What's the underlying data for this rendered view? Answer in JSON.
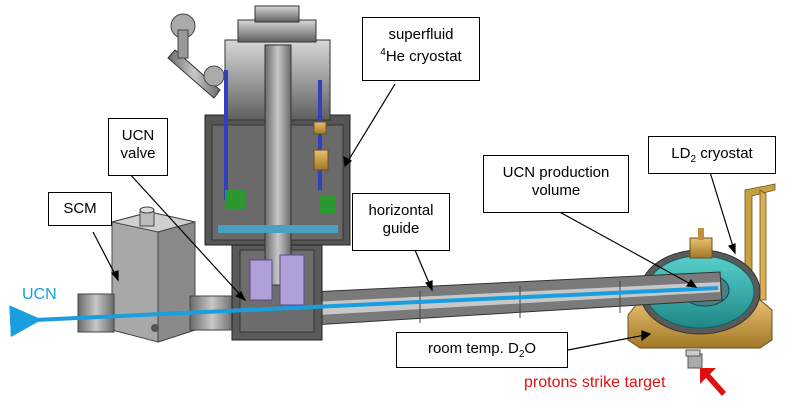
{
  "labels": {
    "superfluid_line1": "superfluid",
    "superfluid_line2_sup": "4",
    "superfluid_line2_rest": "He cryostat",
    "ucn_valve_line1": "UCN",
    "ucn_valve_line2": "valve",
    "scm": "SCM",
    "horizontal_line1": "horizontal",
    "horizontal_line2": "guide",
    "ucn_prod_line1": "UCN production",
    "ucn_prod_line2": "volume",
    "ld2_main": "LD",
    "ld2_sub": "2",
    "ld2_rest": " cryostat",
    "d2o_main": "room temp. D",
    "d2o_sub": "2",
    "d2o_rest": "O",
    "ucn": "UCN",
    "protons": "protons strike target"
  },
  "colors": {
    "ucn_arrow": "#1a9ee0",
    "protons": "#e01010",
    "steel": "#9a9a9a",
    "cryostat_fluid": "#2eaaa8",
    "d2o_vessel": "#c8a040"
  }
}
